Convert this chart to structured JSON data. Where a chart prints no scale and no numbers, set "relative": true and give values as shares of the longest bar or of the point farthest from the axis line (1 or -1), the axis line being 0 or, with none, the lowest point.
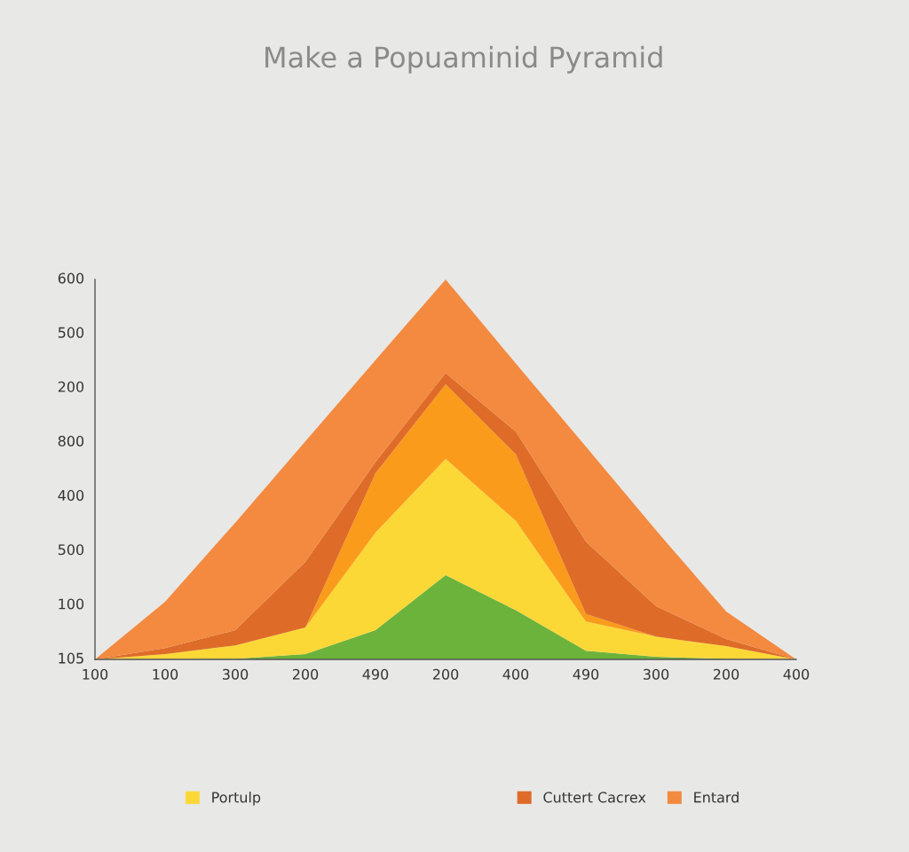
{
  "chart_data": {
    "type": "area",
    "title": "Make a Popuaminid Pyramid",
    "relative": true,
    "stacked": true,
    "categories": [
      "100",
      "100",
      "300",
      "200",
      "490",
      "200",
      "400",
      "490",
      "300",
      "200",
      "400"
    ],
    "annotations": [
      "600",
      "500",
      "200",
      "800",
      "400",
      "500",
      "100",
      "105"
    ],
    "legend": "bottom",
    "series": [
      {
        "color": "#6cb33c",
        "values": [
          0,
          0.001,
          0.002,
          0.014,
          0.077,
          0.222,
          0.13,
          0.023,
          0.007,
          0.002,
          0
        ]
      },
      {
        "name": "Portulp",
        "color": "#fcd837",
        "values": [
          0,
          0.013,
          0.035,
          0.07,
          0.257,
          0.306,
          0.235,
          0.077,
          0.053,
          0.033,
          0
        ]
      },
      {
        "color": "#fb9b1c",
        "values": [
          0,
          0,
          0,
          0,
          0.156,
          0.196,
          0.175,
          0.02,
          0,
          0,
          0
        ]
      },
      {
        "name": "Cuttert Cacrex",
        "color": "#de6c28",
        "values": [
          0,
          0.016,
          0.04,
          0.173,
          0.03,
          0.03,
          0.06,
          0.19,
          0.08,
          0.019,
          0
        ]
      },
      {
        "name": "Entard",
        "color": "#f38a40",
        "values": [
          0,
          0.122,
          0.283,
          0.317,
          0.268,
          0.246,
          0.179,
          0.25,
          0.2,
          0.072,
          0
        ]
      }
    ]
  }
}
